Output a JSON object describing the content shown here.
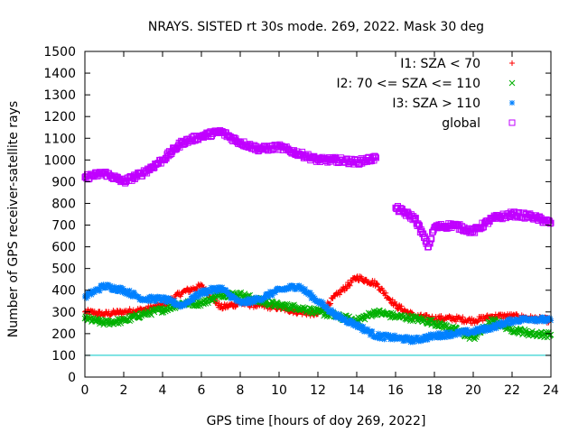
{
  "chart_data": {
    "type": "scatter",
    "title": "NRAYS. SISTED rt 30s mode. 269, 2022. Mask 30 deg",
    "xlabel": "GPS time [hours of doy 269, 2022]",
    "ylabel": "Number of GPS receiver-satellite rays",
    "xlim": [
      0,
      24
    ],
    "ylim": [
      0,
      1500
    ],
    "xticks": [
      "0",
      "2",
      "4",
      "6",
      "8",
      "10",
      "12",
      "14",
      "16",
      "18",
      "20",
      "22",
      "24"
    ],
    "yticks": [
      "0",
      "100",
      "200",
      "300",
      "400",
      "500",
      "600",
      "700",
      "800",
      "900",
      "1000",
      "1100",
      "1200",
      "1300",
      "1400",
      "1500"
    ],
    "legend_position": "top-right",
    "grid": false,
    "reference_line": {
      "y": 100,
      "color": "#00c8c8"
    },
    "series": [
      {
        "name": "I1: SZA < 70",
        "marker": "+",
        "color": "#ff0000",
        "x": [
          0,
          1,
          2,
          3,
          4,
          5,
          6,
          7,
          8,
          9,
          10,
          11,
          12,
          13,
          14,
          15,
          16,
          17,
          18,
          19,
          20,
          21,
          22,
          23,
          24
        ],
        "y": [
          300,
          290,
          300,
          310,
          330,
          390,
          420,
          320,
          340,
          330,
          320,
          300,
          290,
          380,
          460,
          430,
          330,
          280,
          270,
          270,
          260,
          280,
          280,
          270,
          260
        ]
      },
      {
        "name": "I2: 70 <= SZA <= 110",
        "marker": "x",
        "color": "#00b000",
        "x": [
          0,
          1,
          2,
          3,
          4,
          5,
          6,
          7,
          8,
          9,
          10,
          11,
          12,
          13,
          14,
          15,
          16,
          17,
          18,
          19,
          20,
          21,
          22,
          23,
          24
        ],
        "y": [
          270,
          250,
          260,
          290,
          310,
          340,
          340,
          380,
          380,
          350,
          330,
          320,
          300,
          280,
          260,
          300,
          280,
          270,
          250,
          220,
          180,
          260,
          220,
          200,
          195
        ]
      },
      {
        "name": "I3: SZA > 110",
        "marker": "*",
        "color": "#0080ff",
        "x": [
          0,
          1,
          2,
          3,
          4,
          5,
          6,
          7,
          8,
          9,
          10,
          11,
          12,
          13,
          14,
          15,
          16,
          17,
          18,
          19,
          20,
          21,
          22,
          23,
          24
        ],
        "y": [
          370,
          420,
          400,
          360,
          360,
          330,
          390,
          410,
          340,
          360,
          400,
          420,
          350,
          280,
          240,
          190,
          180,
          170,
          190,
          200,
          210,
          230,
          260,
          270,
          260
        ]
      },
      {
        "name": "global",
        "marker": "square",
        "color": "#c000ff",
        "x": [
          0,
          1,
          2,
          3,
          4,
          5,
          6,
          7,
          8,
          9,
          10,
          11,
          12,
          13,
          14,
          15,
          15,
          16,
          17,
          17.7,
          18,
          19,
          20,
          21,
          22,
          23,
          24
        ],
        "y": [
          920,
          940,
          900,
          940,
          1000,
          1080,
          1110,
          1130,
          1080,
          1050,
          1060,
          1030,
          1000,
          1000,
          990,
          1010,
          null,
          780,
          730,
          600,
          690,
          700,
          670,
          730,
          750,
          740,
          710
        ]
      }
    ]
  }
}
